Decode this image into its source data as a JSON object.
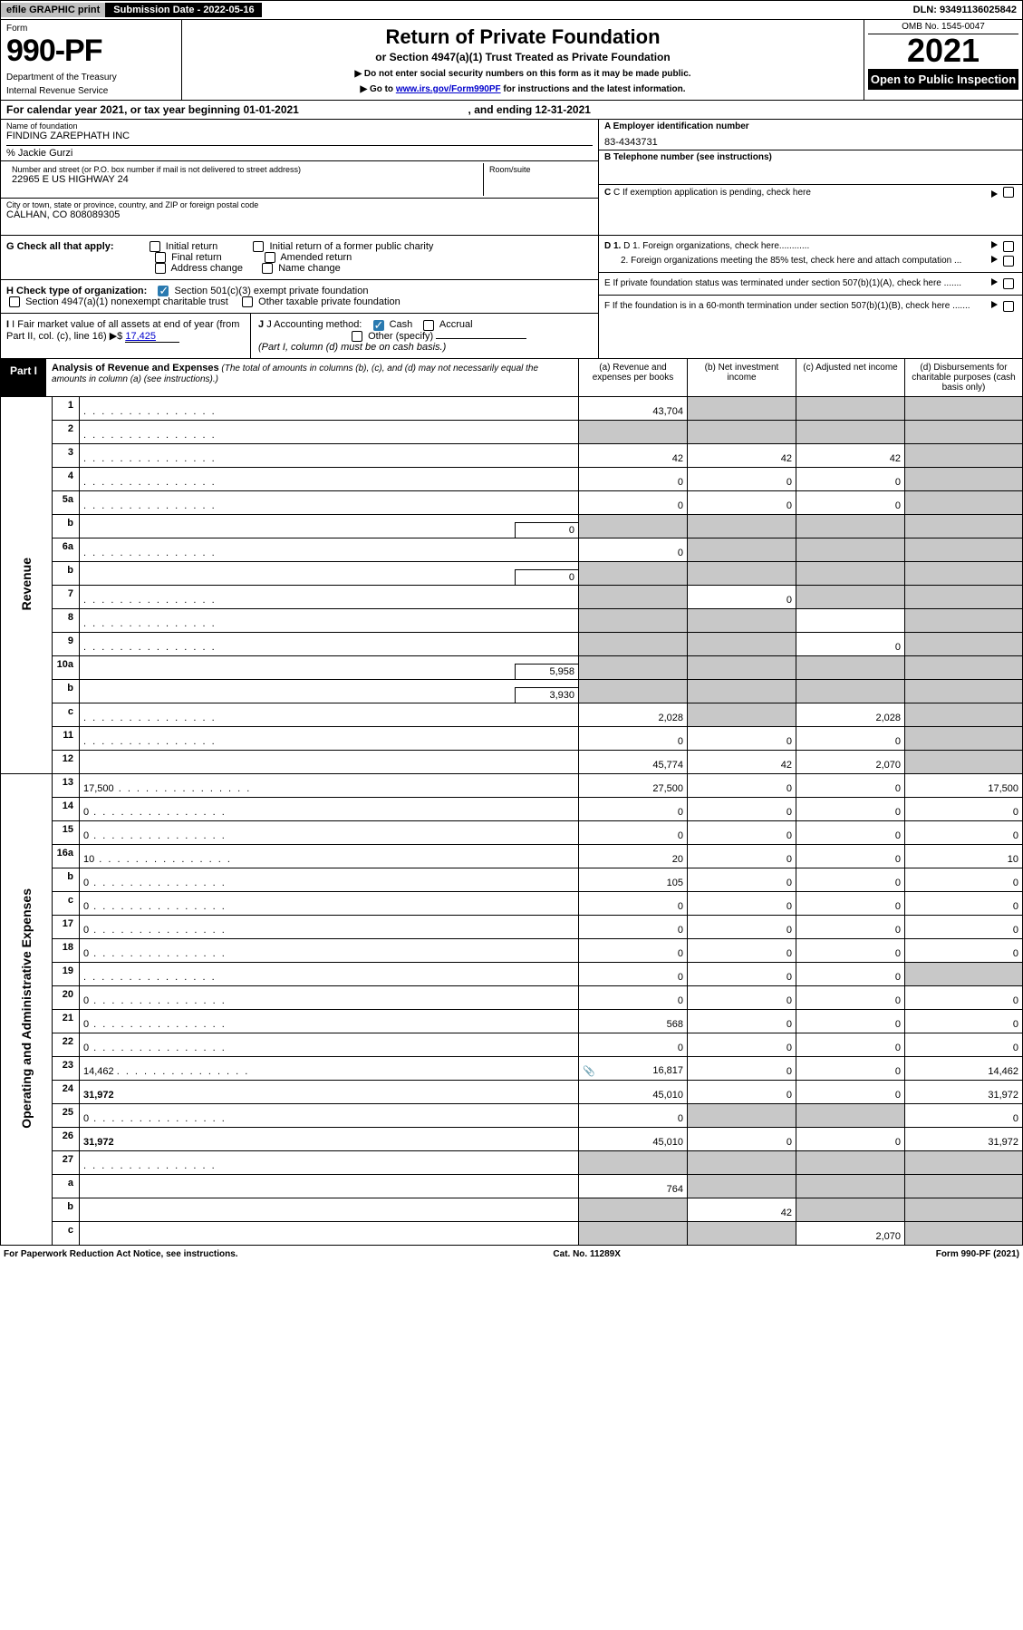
{
  "topbar": {
    "efile": "efile GRAPHIC print",
    "subdate_label": "Submission Date - 2022-05-16",
    "dln": "DLN: 93491136025842"
  },
  "header": {
    "form_word": "Form",
    "form_no": "990-PF",
    "dept1": "Department of the Treasury",
    "dept2": "Internal Revenue Service",
    "title": "Return of Private Foundation",
    "subtitle": "or Section 4947(a)(1) Trust Treated as Private Foundation",
    "instr1": "▶ Do not enter social security numbers on this form as it may be made public.",
    "instr2_pre": "▶ Go to ",
    "instr2_link": "www.irs.gov/Form990PF",
    "instr2_post": " for instructions and the latest information.",
    "omb": "OMB No. 1545-0047",
    "year": "2021",
    "open": "Open to Public Inspection"
  },
  "calendar": {
    "text_pre": "For calendar year 2021, or tax year beginning ",
    "begin": "01-01-2021",
    "mid": " , and ending ",
    "end": "12-31-2021"
  },
  "id": {
    "name_lbl": "Name of foundation",
    "name_val": "FINDING ZAREPHATH INC",
    "care_of": "% Jackie Gurzi",
    "addr_lbl": "Number and street (or P.O. box number if mail is not delivered to street address)",
    "addr_val": "22965 E US HIGHWAY 24",
    "room_lbl": "Room/suite",
    "city_lbl": "City or town, state or province, country, and ZIP or foreign postal code",
    "city_val": "CALHAN, CO  808089305",
    "a_lbl": "A Employer identification number",
    "a_val": "83-4343731",
    "b_lbl": "B Telephone number (see instructions)",
    "c_lbl": "C If exemption application is pending, check here",
    "g_lbl": "G Check all that apply:",
    "g_opts": [
      "Initial return",
      "Final return",
      "Address change",
      "Initial return of a former public charity",
      "Amended return",
      "Name change"
    ],
    "h_lbl": "H Check type of organization:",
    "h1": "Section 501(c)(3) exempt private foundation",
    "h2": "Section 4947(a)(1) nonexempt charitable trust",
    "h3": "Other taxable private foundation",
    "i_lbl": "I Fair market value of all assets at end of year (from Part II, col. (c), line 16)",
    "i_val": "17,425",
    "j_lbl": "J Accounting method:",
    "j_opts": [
      "Cash",
      "Accrual"
    ],
    "j_other": "Other (specify)",
    "j_note": "(Part I, column (d) must be on cash basis.)",
    "d1": "D 1. Foreign organizations, check here............",
    "d2": "2. Foreign organizations meeting the 85% test, check here and attach computation ...",
    "e": "E  If private foundation status was terminated under section 507(b)(1)(A), check here .......",
    "f": "F  If the foundation is in a 60-month termination under section 507(b)(1)(B), check here .......",
    "dollar": "▶$ "
  },
  "part1": {
    "label": "Part I",
    "title": "Analysis of Revenue and Expenses",
    "note": " (The total of amounts in columns (b), (c), and (d) may not necessarily equal the amounts in column (a) (see instructions).)",
    "colA": "(a) Revenue and expenses per books",
    "colB": "(b) Net investment income",
    "colC": "(c) Adjusted net income",
    "colD": "(d) Disbursements for charitable purposes (cash basis only)"
  },
  "side_labels": {
    "rev": "Revenue",
    "exp": "Operating and Administrative Expenses"
  },
  "rows": {
    "r1": {
      "ln": "1",
      "d": "",
      "a": "43,704",
      "b": "",
      "c": ""
    },
    "r2": {
      "ln": "2",
      "d": "",
      "a": "",
      "b": "",
      "c": ""
    },
    "r3": {
      "ln": "3",
      "d": "",
      "a": "42",
      "b": "42",
      "c": "42"
    },
    "r4": {
      "ln": "4",
      "d": "",
      "a": "0",
      "b": "0",
      "c": "0"
    },
    "r5a": {
      "ln": "5a",
      "d": "",
      "a": "0",
      "b": "0",
      "c": "0"
    },
    "r5b": {
      "ln": "b",
      "d": "",
      "inline": "0",
      "a": "",
      "b": "",
      "c": ""
    },
    "r6a": {
      "ln": "6a",
      "d": "",
      "a": "0",
      "b": "",
      "c": ""
    },
    "r6b": {
      "ln": "b",
      "d": "",
      "inline": "0",
      "a": "",
      "b": "",
      "c": ""
    },
    "r7": {
      "ln": "7",
      "d": "",
      "a": "",
      "b": "0",
      "c": ""
    },
    "r8": {
      "ln": "8",
      "d": "",
      "a": "",
      "b": "",
      "c": ""
    },
    "r9": {
      "ln": "9",
      "d": "",
      "a": "",
      "b": "",
      "c": "0"
    },
    "r10a": {
      "ln": "10a",
      "d": "",
      "inline": "5,958",
      "a": "",
      "b": "",
      "c": ""
    },
    "r10b": {
      "ln": "b",
      "d": "",
      "inline": "3,930",
      "a": "",
      "b": "",
      "c": ""
    },
    "r10c": {
      "ln": "c",
      "d": "",
      "a": "2,028",
      "b": "",
      "c": "2,028"
    },
    "r11": {
      "ln": "11",
      "d": "",
      "a": "0",
      "b": "0",
      "c": "0"
    },
    "r12": {
      "ln": "12",
      "d": "",
      "bold": true,
      "a": "45,774",
      "b": "42",
      "c": "2,070"
    },
    "r13": {
      "ln": "13",
      "d": "17,500",
      "a": "27,500",
      "b": "0",
      "c": "0"
    },
    "r14": {
      "ln": "14",
      "d": "0",
      "a": "0",
      "b": "0",
      "c": "0"
    },
    "r15": {
      "ln": "15",
      "d": "0",
      "a": "0",
      "b": "0",
      "c": "0"
    },
    "r16a": {
      "ln": "16a",
      "d": "10",
      "a": "20",
      "b": "0",
      "c": "0"
    },
    "r16b": {
      "ln": "b",
      "d": "0",
      "a": "105",
      "b": "0",
      "c": "0"
    },
    "r16c": {
      "ln": "c",
      "d": "0",
      "a": "0",
      "b": "0",
      "c": "0"
    },
    "r17": {
      "ln": "17",
      "d": "0",
      "a": "0",
      "b": "0",
      "c": "0"
    },
    "r18": {
      "ln": "18",
      "d": "0",
      "a": "0",
      "b": "0",
      "c": "0"
    },
    "r19": {
      "ln": "19",
      "d": "",
      "a": "0",
      "b": "0",
      "c": "0"
    },
    "r20": {
      "ln": "20",
      "d": "0",
      "a": "0",
      "b": "0",
      "c": "0"
    },
    "r21": {
      "ln": "21",
      "d": "0",
      "a": "568",
      "b": "0",
      "c": "0"
    },
    "r22": {
      "ln": "22",
      "d": "0",
      "a": "0",
      "b": "0",
      "c": "0"
    },
    "r23": {
      "ln": "23",
      "d": "14,462",
      "icon": "📎",
      "a": "16,817",
      "b": "0",
      "c": "0"
    },
    "r24": {
      "ln": "24",
      "d": "31,972",
      "bold": true,
      "a": "45,010",
      "b": "0",
      "c": "0"
    },
    "r25": {
      "ln": "25",
      "d": "0",
      "a": "0",
      "b": "",
      "c": ""
    },
    "r26": {
      "ln": "26",
      "d": "31,972",
      "bold": true,
      "a": "45,010",
      "b": "0",
      "c": "0"
    },
    "r27": {
      "ln": "27",
      "d": "",
      "a": "",
      "b": "",
      "c": ""
    },
    "r27a": {
      "ln": "a",
      "d": "",
      "bold": true,
      "a": "764",
      "b": "",
      "c": ""
    },
    "r27b": {
      "ln": "b",
      "d": "",
      "bold": true,
      "a": "",
      "b": "42",
      "c": ""
    },
    "r27c": {
      "ln": "c",
      "d": "",
      "bold": true,
      "a": "",
      "b": "",
      "c": "2,070"
    }
  },
  "grayed": {
    "r1": [
      "b",
      "c",
      "d"
    ],
    "r2": [
      "a",
      "b",
      "c",
      "d"
    ],
    "r3": [
      "d"
    ],
    "r4": [
      "d"
    ],
    "r5a": [
      "d"
    ],
    "r5b": [
      "a",
      "b",
      "c",
      "d"
    ],
    "r6a": [
      "b",
      "c",
      "d"
    ],
    "r6b": [
      "a",
      "b",
      "c",
      "d"
    ],
    "r7": [
      "a",
      "c",
      "d"
    ],
    "r8": [
      "a",
      "b",
      "d"
    ],
    "r9": [
      "a",
      "b",
      "d"
    ],
    "r10a": [
      "a",
      "b",
      "c",
      "d"
    ],
    "r10b": [
      "a",
      "b",
      "c",
      "d"
    ],
    "r10c": [
      "b",
      "d"
    ],
    "r11": [
      "d"
    ],
    "r12": [
      "d"
    ],
    "r19": [
      "d"
    ],
    "r24": [],
    "r25": [
      "b",
      "c"
    ],
    "r27": [
      "a",
      "b",
      "c",
      "d"
    ],
    "r27a": [
      "b",
      "c",
      "d"
    ],
    "r27b": [
      "a",
      "c",
      "d"
    ],
    "r27c": [
      "a",
      "b",
      "d"
    ]
  },
  "footer": {
    "left": "For Paperwork Reduction Act Notice, see instructions.",
    "mid": "Cat. No. 11289X",
    "right": "Form 990-PF (2021)"
  },
  "colors": {
    "topbar_gray": "#c0c0c0",
    "black": "#000000",
    "check_blue": "#2a7ab0",
    "gray_cell": "#c8c8c8",
    "link": "#0000cc"
  }
}
